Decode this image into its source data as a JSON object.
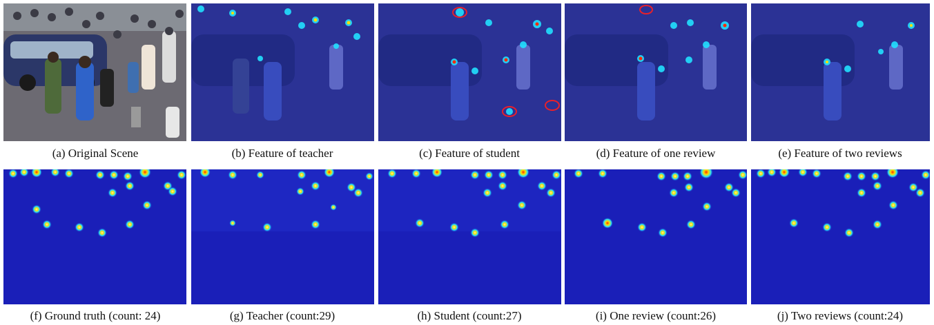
{
  "captions": {
    "a": "(a) Original Scene",
    "b": "(b) Feature of teacher",
    "c": "(c) Feature of student",
    "d": "(d) Feature of one review",
    "e": "(e) Feature of two reviews",
    "f": "(f) Ground truth (count: 24)",
    "g": "(g) Teacher (count:29)",
    "h": "(h) Student (count:27)",
    "i": "(i) One review (count:26)",
    "j": "(j) Two reviews (count:24)"
  },
  "colors": {
    "density_background": "#1a1fb8",
    "feature_overlay": "#2a33c8",
    "highlight_circle": "#e8202a",
    "hot": "#ff2a00",
    "warm": "#ffe000",
    "cool": "#22e0ff"
  }
}
